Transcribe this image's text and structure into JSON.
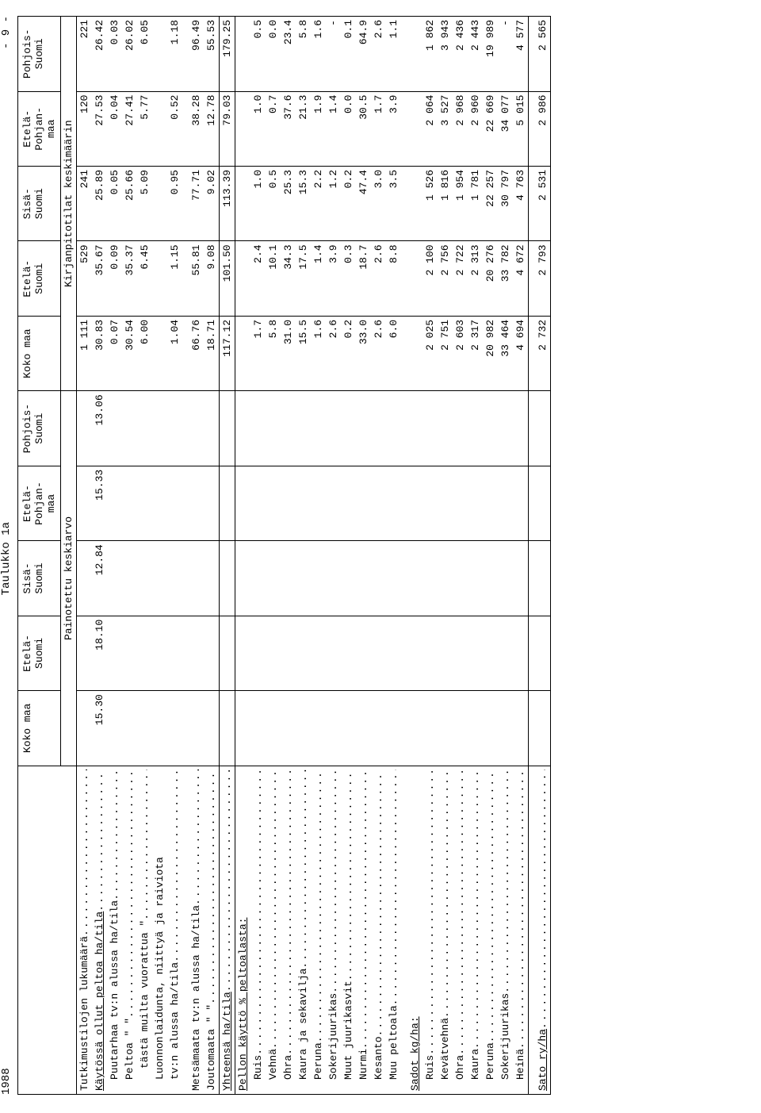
{
  "meta": {
    "year": "1988",
    "table_title": "Taulukko 1a",
    "page_number": "- 9 -"
  },
  "group_headers": {
    "painotettu": "Painotettu keskiarvo",
    "kirjanpito": "Kirjanpitotilat keskimäärin"
  },
  "col_headers": [
    "Koko maa",
    "Etelä-\nSuomi",
    "Sisä-\nSuomi",
    "Etelä-\nPohjan-\nmaa",
    "Pohjois-\nSuomi",
    "Koko maa",
    "Etelä-\nSuomi",
    "Sisä-\nSuomi",
    "Etelä-\nPohjan-\nmaa",
    "Pohjois-\nSuomi"
  ],
  "rows": [
    {
      "label": "Tutkimustilojen lukumäärä",
      "dots": true,
      "vals": [
        "",
        "",
        "",
        "",
        "",
        "1 111",
        "529",
        "241",
        "120",
        "221"
      ]
    },
    {
      "label": "Käytössä ollut peltoa ha/tila",
      "underline": true,
      "dots": true,
      "vals": [
        "15.30",
        "18.10",
        "12.84",
        "15.33",
        "13.06",
        "30.83",
        "35.67",
        "25.89",
        "27.53",
        "26.42"
      ]
    },
    {
      "label": "Puutarhaa tv:n alussa ha/tila",
      "indent": 1,
      "dots": true,
      "vals": [
        "",
        "",
        "",
        "",
        "",
        "0.07",
        "0.09",
        "0.05",
        "0.04",
        "0.03"
      ]
    },
    {
      "label": "Peltoa        \"        \"",
      "indent": 1,
      "dots": true,
      "vals": [
        "",
        "",
        "",
        "",
        "",
        "30.54",
        "35.37",
        "25.66",
        "27.41",
        "26.02"
      ]
    },
    {
      "label": "tästä muilta vuorattua   \"",
      "indent": 2,
      "dots": true,
      "vals": [
        "",
        "",
        "",
        "",
        "",
        "6.00",
        "6.45",
        "5.09",
        "5.77",
        "6.05"
      ]
    },
    {
      "label": "Luonnonlaidunta, niittyä ja raiviota",
      "indent": 1,
      "vals": [
        "",
        "",
        "",
        "",
        "",
        "",
        "",
        "",
        "",
        ""
      ]
    },
    {
      "label": "tv:n alussa ha/tila",
      "indent": 1,
      "dots": true,
      "vals": [
        "",
        "",
        "",
        "",
        "",
        "1.04",
        "1.15",
        "0.95",
        "0.52",
        "1.18"
      ]
    },
    {
      "label": "Metsämaata tv:n alussa ha/tila",
      "dots": true,
      "pad": true,
      "vals": [
        "",
        "",
        "",
        "",
        "",
        "66.76",
        "55.81",
        "77.71",
        "38.28",
        "96.49"
      ]
    },
    {
      "label": "Joutomaata     \"        \"",
      "dots": true,
      "vals": [
        "",
        "",
        "",
        "",
        "",
        "18.71",
        "9.08",
        "9.02",
        "12.78",
        "55.53"
      ]
    },
    {
      "label": "Yhteensä ha/tila",
      "underline": true,
      "dots": true,
      "block": "single",
      "vals": [
        "",
        "",
        "",
        "",
        "",
        "117.12",
        "101.50",
        "113.39",
        "79.03",
        "179.25"
      ]
    },
    {
      "label": "Pellon käyttö % peltoalasta:",
      "underline": true,
      "vals": [
        "",
        "",
        "",
        "",
        "",
        "",
        "",
        "",
        "",
        ""
      ]
    },
    {
      "label": "Ruis",
      "indent": 1,
      "dots": true,
      "vals": [
        "",
        "",
        "",
        "",
        "",
        "1.7",
        "2.4",
        "1.0",
        "1.0",
        "0.5"
      ]
    },
    {
      "label": "Vehnä",
      "indent": 1,
      "dots": true,
      "vals": [
        "",
        "",
        "",
        "",
        "",
        "5.8",
        "10.1",
        "0.5",
        "0.7",
        "0.0"
      ]
    },
    {
      "label": "Ohra",
      "indent": 1,
      "dots": true,
      "vals": [
        "",
        "",
        "",
        "",
        "",
        "31.0",
        "34.3",
        "25.3",
        "37.6",
        "23.4"
      ]
    },
    {
      "label": "Kaura ja sekavilja",
      "indent": 1,
      "dots": true,
      "vals": [
        "",
        "",
        "",
        "",
        "",
        "15.5",
        "17.5",
        "15.3",
        "21.3",
        "5.8"
      ]
    },
    {
      "label": "Peruna",
      "indent": 1,
      "dots": true,
      "vals": [
        "",
        "",
        "",
        "",
        "",
        "1.6",
        "1.4",
        "2.2",
        "1.9",
        "1.6"
      ]
    },
    {
      "label": "Sokerijuurikas",
      "indent": 1,
      "dots": true,
      "vals": [
        "",
        "",
        "",
        "",
        "",
        "2.6",
        "3.9",
        "1.2",
        "1.4",
        "-"
      ]
    },
    {
      "label": "Muut juurikasvit",
      "indent": 1,
      "dots": true,
      "vals": [
        "",
        "",
        "",
        "",
        "",
        "0.2",
        "0.3",
        "0.2",
        "0.0",
        "0.1"
      ]
    },
    {
      "label": "Nurmi",
      "indent": 1,
      "dots": true,
      "vals": [
        "",
        "",
        "",
        "",
        "",
        "33.0",
        "18.7",
        "47.4",
        "30.5",
        "64.9"
      ]
    },
    {
      "label": "Kesanto",
      "indent": 1,
      "dots": true,
      "vals": [
        "",
        "",
        "",
        "",
        "",
        "2.6",
        "2.6",
        "3.0",
        "1.7",
        "2.6"
      ]
    },
    {
      "label": "Muu peltoala",
      "indent": 1,
      "dots": true,
      "vals": [
        "",
        "",
        "",
        "",
        "",
        "6.0",
        "8.8",
        "3.5",
        "3.9",
        "1.1"
      ]
    },
    {
      "label": "Sadot kg/ha:",
      "underline": true,
      "pad": true,
      "vals": [
        "",
        "",
        "",
        "",
        "",
        "",
        "",
        "",
        "",
        ""
      ]
    },
    {
      "label": "Ruis",
      "indent": 1,
      "dots": true,
      "vals": [
        "",
        "",
        "",
        "",
        "",
        "2 025",
        "2 100",
        "1 526",
        "2 064",
        "1 862"
      ]
    },
    {
      "label": "Kevätvehnä",
      "indent": 1,
      "dots": true,
      "vals": [
        "",
        "",
        "",
        "",
        "",
        "2 751",
        "2 756",
        "1 816",
        "3 527",
        "3 943"
      ]
    },
    {
      "label": "Ohra",
      "indent": 1,
      "dots": true,
      "vals": [
        "",
        "",
        "",
        "",
        "",
        "2 603",
        "2 722",
        "1 954",
        "2 968",
        "2 436"
      ]
    },
    {
      "label": "Kaura",
      "indent": 1,
      "dots": true,
      "vals": [
        "",
        "",
        "",
        "",
        "",
        "2 317",
        "2 313",
        "1 781",
        "2 960",
        "2 443"
      ]
    },
    {
      "label": "Peruna",
      "indent": 1,
      "dots": true,
      "vals": [
        "",
        "",
        "",
        "",
        "",
        "20 982",
        "20 276",
        "22 257",
        "22 669",
        "19 989"
      ]
    },
    {
      "label": "Sokerijuurikas",
      "indent": 1,
      "dots": true,
      "vals": [
        "",
        "",
        "",
        "",
        "",
        "33 464",
        "33 782",
        "30 797",
        "34 077",
        "-"
      ]
    },
    {
      "label": "Heinä",
      "indent": 1,
      "dots": true,
      "vals": [
        "",
        "",
        "",
        "",
        "",
        "4 694",
        "4 672",
        "4 763",
        "5 015",
        "4 577"
      ]
    },
    {
      "label": "Sato ry/ha",
      "underline": true,
      "dots": true,
      "block": "single",
      "pad": true,
      "vals": [
        "",
        "",
        "",
        "",
        "",
        "2 732",
        "2 793",
        "2 531",
        "2 986",
        "2 565"
      ]
    }
  ]
}
